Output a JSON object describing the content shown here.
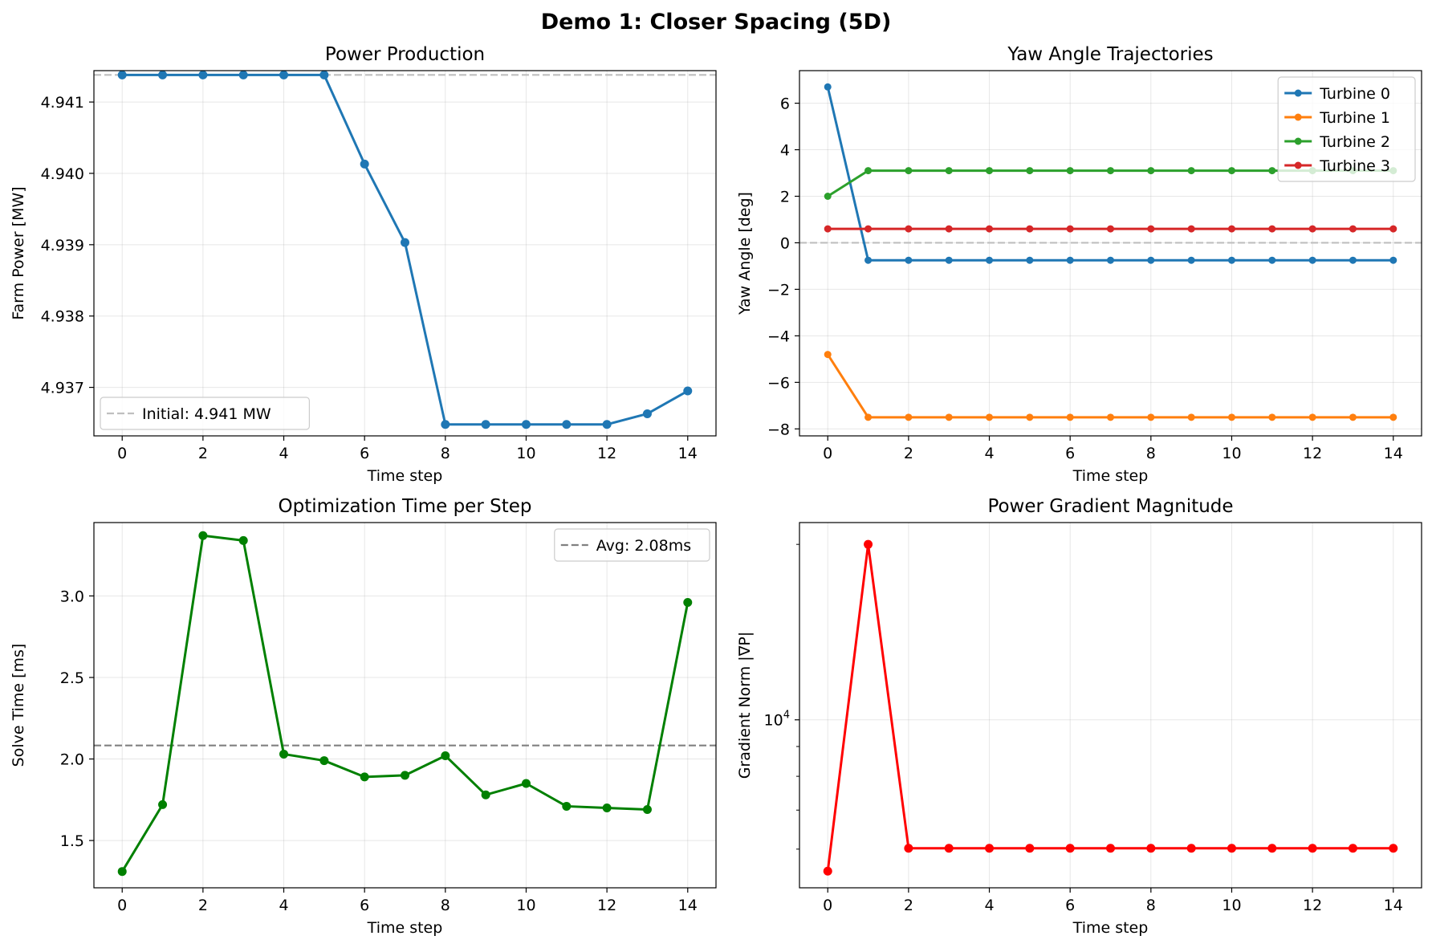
{
  "figure": {
    "suptitle": "Demo 1: Closer Spacing (5D)"
  },
  "chart_data": [
    {
      "type": "line",
      "title": "Power Production",
      "xlabel": "Time step",
      "ylabel": "Farm Power [MW]",
      "xlim": [
        -0.7,
        14.7
      ],
      "ylim": [
        4.93632,
        4.94144
      ],
      "xticks": [
        0,
        2,
        4,
        6,
        8,
        10,
        12,
        14
      ],
      "xtick_labels": [
        "0",
        "2",
        "4",
        "6",
        "8",
        "10",
        "12",
        "14"
      ],
      "yticks": [
        4.937,
        4.938,
        4.939,
        4.94,
        4.941
      ],
      "ytick_labels": [
        "4.937",
        "4.938",
        "4.939",
        "4.940",
        "4.941"
      ],
      "grid": true,
      "legend": "lower-left",
      "series": [
        {
          "name": "",
          "color": "#1f77b4",
          "x": [
            0,
            1,
            2,
            3,
            4,
            5,
            6,
            7,
            8,
            9,
            10,
            11,
            12,
            13,
            14
          ],
          "y": [
            4.94138,
            4.94138,
            4.94138,
            4.94138,
            4.94138,
            4.94138,
            4.94013,
            4.93903,
            4.93648,
            4.93648,
            4.93648,
            4.93648,
            4.93648,
            4.93663,
            4.93695
          ]
        }
      ],
      "hlines": [
        {
          "name": "Initial: 4.941 MW",
          "y": 4.94138,
          "color": "#bfbfbf"
        }
      ]
    },
    {
      "type": "line",
      "title": "Yaw Angle Trajectories",
      "xlabel": "Time step",
      "ylabel": "Yaw Angle [deg]",
      "xlim": [
        -0.7,
        14.7
      ],
      "ylim": [
        -8.3,
        7.4
      ],
      "xticks": [
        0,
        2,
        4,
        6,
        8,
        10,
        12,
        14
      ],
      "xtick_labels": [
        "0",
        "2",
        "4",
        "6",
        "8",
        "10",
        "12",
        "14"
      ],
      "yticks": [
        -8,
        -6,
        -4,
        -2,
        0,
        2,
        4,
        6
      ],
      "ytick_labels": [
        "−8",
        "−6",
        "−4",
        "−2",
        "0",
        "2",
        "4",
        "6"
      ],
      "grid": true,
      "legend": "top-right",
      "series": [
        {
          "name": "Turbine 0",
          "color": "#1f77b4",
          "x": [
            0,
            1,
            2,
            3,
            4,
            5,
            6,
            7,
            8,
            9,
            10,
            11,
            12,
            13,
            14
          ],
          "y": [
            6.7,
            -0.75,
            -0.75,
            -0.75,
            -0.75,
            -0.75,
            -0.75,
            -0.75,
            -0.75,
            -0.75,
            -0.75,
            -0.75,
            -0.75,
            -0.75,
            -0.75
          ]
        },
        {
          "name": "Turbine 1",
          "color": "#ff7f0e",
          "x": [
            0,
            1,
            2,
            3,
            4,
            5,
            6,
            7,
            8,
            9,
            10,
            11,
            12,
            13,
            14
          ],
          "y": [
            -4.8,
            -7.5,
            -7.5,
            -7.5,
            -7.5,
            -7.5,
            -7.5,
            -7.5,
            -7.5,
            -7.5,
            -7.5,
            -7.5,
            -7.5,
            -7.5,
            -7.5
          ]
        },
        {
          "name": "Turbine 2",
          "color": "#2ca02c",
          "x": [
            0,
            1,
            2,
            3,
            4,
            5,
            6,
            7,
            8,
            9,
            10,
            11,
            12,
            13,
            14
          ],
          "y": [
            2.0,
            3.1,
            3.1,
            3.1,
            3.1,
            3.1,
            3.1,
            3.1,
            3.1,
            3.1,
            3.1,
            3.1,
            3.1,
            3.1,
            3.1
          ]
        },
        {
          "name": "Turbine 3",
          "color": "#d62728",
          "x": [
            0,
            1,
            2,
            3,
            4,
            5,
            6,
            7,
            8,
            9,
            10,
            11,
            12,
            13,
            14
          ],
          "y": [
            0.6,
            0.6,
            0.6,
            0.6,
            0.6,
            0.6,
            0.6,
            0.6,
            0.6,
            0.6,
            0.6,
            0.6,
            0.6,
            0.6,
            0.6
          ]
        }
      ],
      "hlines": [
        {
          "name": "",
          "y": 0,
          "color": "#bfbfbf"
        }
      ]
    },
    {
      "type": "line",
      "title": "Optimization Time per Step",
      "xlabel": "Time step",
      "ylabel": "Solve Time [ms]",
      "xlim": [
        -0.7,
        14.7
      ],
      "ylim": [
        1.21,
        3.45
      ],
      "xticks": [
        0,
        2,
        4,
        6,
        8,
        10,
        12,
        14
      ],
      "xtick_labels": [
        "0",
        "2",
        "4",
        "6",
        "8",
        "10",
        "12",
        "14"
      ],
      "yticks": [
        1.5,
        2.0,
        2.5,
        3.0
      ],
      "ytick_labels": [
        "1.5",
        "2.0",
        "2.5",
        "3.0"
      ],
      "grid": true,
      "legend": "top-right",
      "series": [
        {
          "name": "",
          "color": "#008000",
          "x": [
            0,
            1,
            2,
            3,
            4,
            5,
            6,
            7,
            8,
            9,
            10,
            11,
            12,
            13,
            14
          ],
          "y": [
            1.31,
            1.72,
            3.37,
            3.34,
            2.03,
            1.99,
            1.89,
            1.9,
            2.02,
            1.78,
            1.85,
            1.71,
            1.7,
            1.69,
            2.96
          ]
        }
      ],
      "hlines": [
        {
          "name": "Avg: 2.08ms",
          "y": 2.083,
          "color": "#808080"
        }
      ]
    },
    {
      "type": "line",
      "title": "Power Gradient Magnitude",
      "xlabel": "Time step",
      "ylabel": "Gradient Norm |∇P|",
      "xlim": [
        -0.7,
        14.7
      ],
      "yscale": "log",
      "ylim": [
        5150,
        21800
      ],
      "xticks": [
        0,
        2,
        4,
        6,
        8,
        10,
        12,
        14
      ],
      "xtick_labels": [
        "0",
        "2",
        "4",
        "6",
        "8",
        "10",
        "12",
        "14"
      ],
      "yticks": [
        10000
      ],
      "ytick_labels": [
        "10^4"
      ],
      "grid": true,
      "legend": "none",
      "series": [
        {
          "name": "",
          "color": "#ff0000",
          "x": [
            0,
            1,
            2,
            3,
            4,
            5,
            6,
            7,
            8,
            9,
            10,
            11,
            12,
            13,
            14
          ],
          "y": [
            5500,
            20000,
            6020,
            6020,
            6020,
            6020,
            6020,
            6020,
            6020,
            6020,
            6020,
            6020,
            6020,
            6020,
            6020
          ]
        }
      ],
      "hlines": []
    }
  ]
}
